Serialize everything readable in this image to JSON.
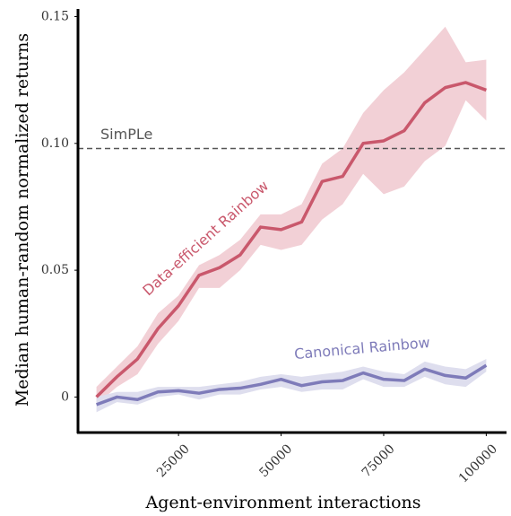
{
  "chart_data": {
    "type": "line",
    "xlabel": "Agent-environment interactions",
    "ylabel": "Median human-random normalized returns",
    "x": [
      5000,
      10000,
      15000,
      20000,
      25000,
      30000,
      35000,
      40000,
      45000,
      50000,
      55000,
      60000,
      65000,
      70000,
      75000,
      80000,
      85000,
      90000,
      95000,
      100000
    ],
    "series": [
      {
        "name": "Data-efficient Rainbow",
        "color": "#c9586c",
        "band_color": "#f2d0d6",
        "values": [
          0.0,
          0.008,
          0.015,
          0.027,
          0.036,
          0.048,
          0.051,
          0.056,
          0.067,
          0.066,
          0.069,
          0.085,
          0.087,
          0.1,
          0.101,
          0.105,
          0.116,
          0.122,
          0.124,
          0.121
        ],
        "upper": [
          0.004,
          0.012,
          0.02,
          0.033,
          0.04,
          0.052,
          0.056,
          0.062,
          0.072,
          0.072,
          0.076,
          0.092,
          0.098,
          0.112,
          0.121,
          0.128,
          0.137,
          0.146,
          0.132,
          0.133
        ],
        "lower": [
          -0.003,
          0.004,
          0.009,
          0.021,
          0.03,
          0.043,
          0.043,
          0.05,
          0.06,
          0.058,
          0.06,
          0.07,
          0.076,
          0.088,
          0.08,
          0.083,
          0.093,
          0.099,
          0.117,
          0.109
        ]
      },
      {
        "name": "Canonical Rainbow",
        "color": "#7e7bb9",
        "band_color": "#dedeee",
        "values": [
          -0.003,
          0.0,
          -0.001,
          0.002,
          0.0025,
          0.0015,
          0.003,
          0.0035,
          0.005,
          0.007,
          0.0045,
          0.006,
          0.0065,
          0.0095,
          0.007,
          0.0065,
          0.011,
          0.0085,
          0.0075,
          0.0125
        ],
        "upper": [
          0.0,
          0.002,
          0.002,
          0.004,
          0.004,
          0.004,
          0.005,
          0.006,
          0.008,
          0.009,
          0.008,
          0.009,
          0.01,
          0.012,
          0.01,
          0.009,
          0.014,
          0.012,
          0.011,
          0.015
        ],
        "lower": [
          -0.006,
          -0.002,
          -0.003,
          0.0,
          0.001,
          -0.001,
          0.001,
          0.001,
          0.003,
          0.004,
          0.002,
          0.003,
          0.003,
          0.007,
          0.004,
          0.004,
          0.008,
          0.005,
          0.004,
          0.01
        ]
      }
    ],
    "reference_line": {
      "label": "SimPLe",
      "value": 0.098,
      "color": "#555555"
    },
    "xlim": [
      500,
      104500
    ],
    "xticks": [
      25000,
      50000,
      75000,
      100000
    ],
    "ylim": [
      -0.014,
      0.153
    ],
    "yticks": [
      0,
      0.05,
      {
        "value": 0.1,
        "label": "0.10"
      },
      0.15
    ]
  }
}
